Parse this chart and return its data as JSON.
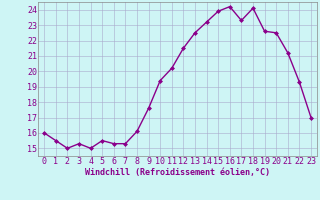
{
  "x": [
    0,
    1,
    2,
    3,
    4,
    5,
    6,
    7,
    8,
    9,
    10,
    11,
    12,
    13,
    14,
    15,
    16,
    17,
    18,
    19,
    20,
    21,
    22,
    23
  ],
  "y": [
    16.0,
    15.5,
    15.0,
    15.3,
    15.0,
    15.5,
    15.3,
    15.3,
    16.1,
    17.6,
    19.4,
    20.2,
    21.5,
    22.5,
    23.2,
    23.9,
    24.2,
    23.3,
    24.1,
    22.6,
    22.5,
    21.2,
    19.3,
    17.0
  ],
  "line_color": "#8B008B",
  "marker": "D",
  "marker_size": 2.0,
  "line_width": 1.0,
  "bg_color": "#cef5f5",
  "grid_color": "#aaaacc",
  "xlabel": "Windchill (Refroidissement éolien,°C)",
  "xlabel_color": "#8B008B",
  "xlabel_fontsize": 6.0,
  "tick_color": "#8B008B",
  "tick_fontsize": 6.0,
  "ylim": [
    14.5,
    24.5
  ],
  "yticks": [
    15,
    16,
    17,
    18,
    19,
    20,
    21,
    22,
    23,
    24
  ],
  "xticks": [
    0,
    1,
    2,
    3,
    4,
    5,
    6,
    7,
    8,
    9,
    10,
    11,
    12,
    13,
    14,
    15,
    16,
    17,
    18,
    19,
    20,
    21,
    22,
    23
  ],
  "xlim": [
    -0.5,
    23.5
  ]
}
